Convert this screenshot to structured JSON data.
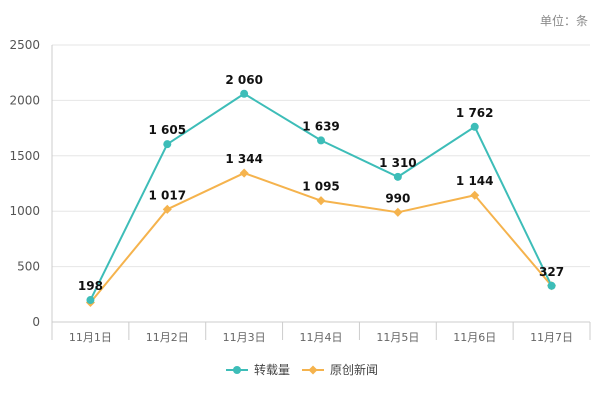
{
  "unit_label": "单位：条",
  "colors": {
    "series_repost": "#3dbdb8",
    "series_original": "#f5b34d",
    "grid": "#e6e6e6",
    "axis": "#cccccc"
  },
  "chart_data": {
    "type": "line",
    "x": [
      "11月1日",
      "11月2日",
      "11月3日",
      "11月4日",
      "11月5日",
      "11月6日",
      "11月7日"
    ],
    "ylim": [
      0,
      2500
    ],
    "yticks": [
      0,
      500,
      1000,
      1500,
      2000,
      2500
    ],
    "grid": true,
    "legend_position": "bottom-center",
    "series": [
      {
        "name": "转载量",
        "values": [
          198,
          1605,
          2060,
          1639,
          1310,
          1762,
          327
        ],
        "labels": [
          "198",
          "1 605",
          "2 060",
          "1 639",
          "1 310",
          "1 762",
          "327"
        ]
      },
      {
        "name": "原创新闻",
        "values": [
          176,
          1017,
          1344,
          1095,
          990,
          1144,
          327
        ],
        "labels": [
          "",
          "1 017",
          "1 344",
          "1 095",
          "990",
          "1 144",
          ""
        ]
      }
    ]
  }
}
